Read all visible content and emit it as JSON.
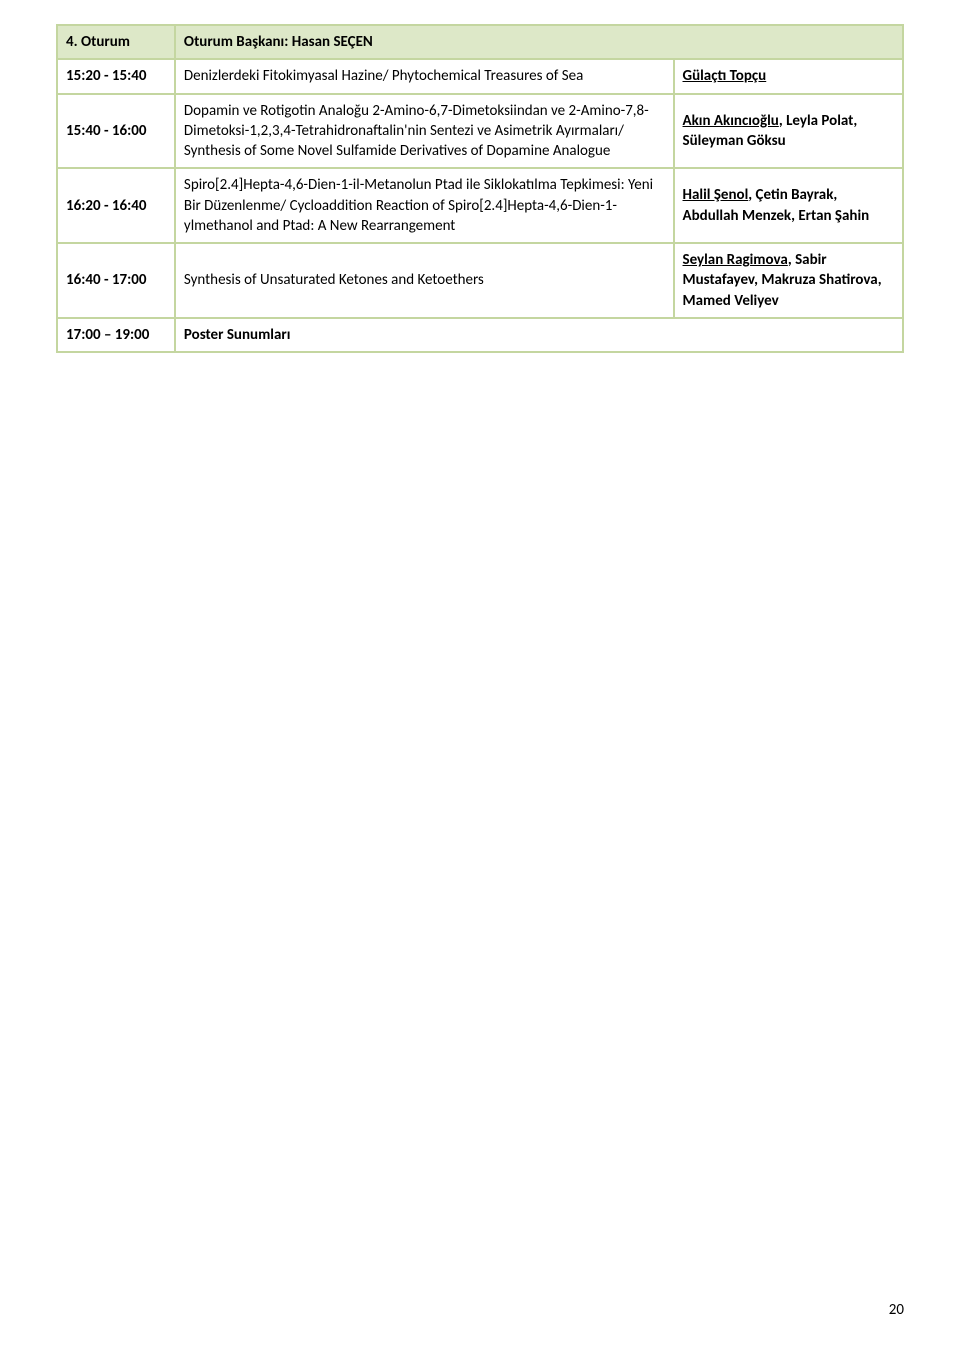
{
  "header": {
    "session_no": "4. Oturum",
    "chair_label": "Oturum Başkanı: Hasan SEÇEN"
  },
  "rows": [
    {
      "time": "15:20 - 15:40",
      "desc": "Denizlerdeki Fitokimyasal Hazine/ Phytochemical Treasures of Sea",
      "presenter_underlined": "Gülaçtı Topçu",
      "coauthors": ""
    },
    {
      "time": "15:40 - 16:00",
      "desc": "Dopamin ve Rotigotin Analoğu 2-Amino-6,7-Dimetoksiindan ve 2-Amino-7,8-Dimetoksi-1,2,3,4-Tetrahidronaftalin'nin Sentezi ve Asimetrik Ayırmaları/ Synthesis of Some Novel Sulfamide Derivatives of Dopamine Analogue",
      "presenter_underlined": "Akın Akıncıoğlu",
      "coauthors": ", Leyla Polat, Süleyman Göksu"
    },
    {
      "time": "16:20 - 16:40",
      "desc": "Spiro[2.4]Hepta-4,6-Dien-1-il-Metanolun Ptad ile Siklokatılma Tepkimesi: Yeni Bir Düzenlenme/ Cycloaddition Reaction of Spiro[2.4]Hepta-4,6-Dien-1-ylmethanol and Ptad: A New Rearrangement",
      "presenter_underlined": "Halil Şenol",
      "coauthors": ", Çetin Bayrak, Abdullah Menzek, Ertan Şahin"
    },
    {
      "time": "16:40 - 17:00",
      "desc": "Synthesis of Unsaturated Ketones and Ketoethers",
      "presenter_underlined": "Seylan Ragimova",
      "coauthors": ", Sabir Mustafayev, Makruza Shatirova, Mamed Veliyev"
    },
    {
      "time": "17:00 – 19:00",
      "desc": "Poster Sunumları",
      "presenter_underlined": "",
      "coauthors": ""
    }
  ],
  "page_number": "20",
  "styling": {
    "border_color": "#c4d6a0",
    "header_bg": "#dde8c8",
    "font_family": "Calibri",
    "font_size_pt": 11,
    "text_color": "#000000",
    "page_bg": "#ffffff"
  }
}
